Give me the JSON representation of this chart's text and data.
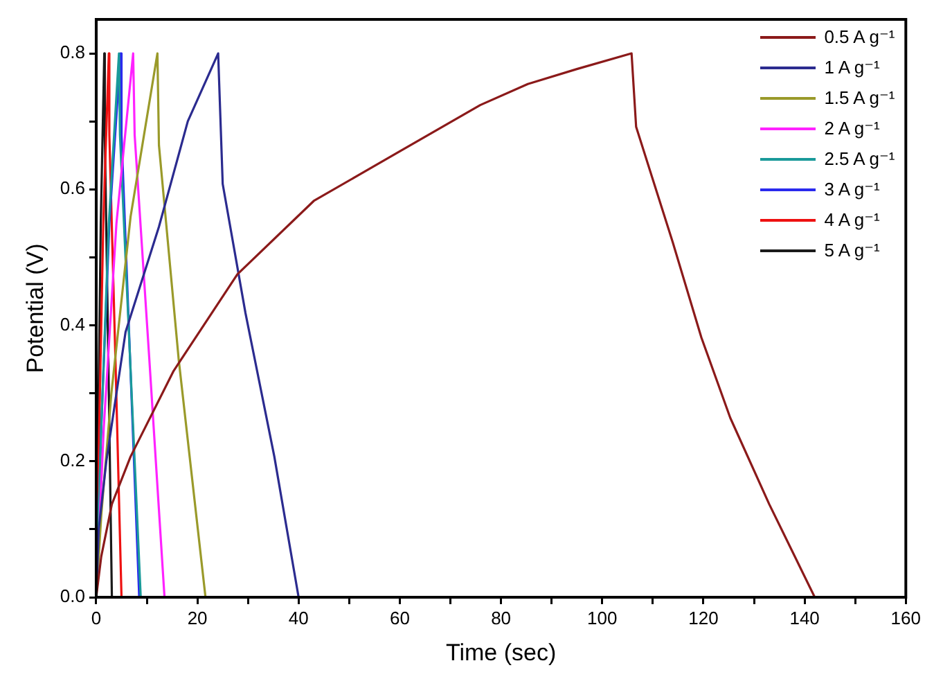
{
  "chart_data": {
    "type": "line",
    "xlabel": "Time (sec)",
    "ylabel": "Potential (V)",
    "xlim": [
      0,
      160
    ],
    "ylim": [
      0,
      0.85
    ],
    "xticks": [
      0,
      {
        "value": 10,
        "label": null
      },
      20,
      {
        "value": 30,
        "label": null
      },
      40,
      {
        "value": 50,
        "label": null
      },
      60,
      {
        "value": 70,
        "label": null
      },
      80,
      {
        "value": 90,
        "label": null
      },
      100,
      {
        "value": 110,
        "label": null
      },
      120,
      {
        "value": 130,
        "label": null
      },
      140,
      {
        "value": 150,
        "label": null
      },
      160
    ],
    "yticks": [
      {
        "value": 0,
        "label": "0.0"
      },
      {
        "value": 0.1,
        "label": null
      },
      0.2,
      {
        "value": 0.3,
        "label": null
      },
      0.4,
      {
        "value": 0.5,
        "label": null
      },
      0.6,
      {
        "value": 0.7,
        "label": null
      },
      0.8
    ],
    "legend": "top right",
    "marker": "none",
    "line_style": "solid",
    "series": [
      {
        "name": "0.5 A g⁻¹",
        "color": "#8b1a1a",
        "x": [
          0,
          1,
          3.1,
          6.8,
          15.3,
          27.9,
          43,
          60,
          75.9,
          85.3,
          95,
          105.8,
          106.7,
          113.9,
          119.6,
          125.3,
          133,
          142
        ],
        "values": [
          0,
          0.06,
          0.137,
          0.207,
          0.333,
          0.475,
          0.583,
          0.656,
          0.724,
          0.755,
          0.777,
          0.8,
          0.692,
          0.523,
          0.382,
          0.264,
          0.137,
          0
        ]
      },
      {
        "name": "1 A g⁻¹",
        "color": "#2b2b8f",
        "x": [
          0,
          0.5,
          2,
          5.8,
          12.4,
          18.1,
          24.1,
          25,
          29.5,
          35.2,
          40
        ],
        "values": [
          0,
          0.1,
          0.2,
          0.39,
          0.545,
          0.7,
          0.8,
          0.608,
          0.418,
          0.207,
          0
        ]
      },
      {
        "name": "1.5 A g⁻¹",
        "color": "#9a9a2a",
        "x": [
          0,
          1,
          3,
          6.8,
          12.1,
          12.4,
          16.3,
          21.6
        ],
        "values": [
          0,
          0.12,
          0.3,
          0.56,
          0.8,
          0.665,
          0.35,
          0
        ]
      },
      {
        "name": "2 A g⁻¹",
        "color": "#ff22ff",
        "x": [
          0,
          1.5,
          4,
          7.3,
          7.6,
          10.5,
          13.5
        ],
        "values": [
          0,
          0.25,
          0.55,
          0.8,
          0.68,
          0.35,
          0
        ]
      },
      {
        "name": "2.5 A g⁻¹",
        "color": "#1a9a9a",
        "x": [
          0,
          1,
          2.5,
          4.5,
          4.7,
          6.7,
          8.8
        ],
        "values": [
          0,
          0.25,
          0.55,
          0.8,
          0.68,
          0.35,
          0
        ]
      },
      {
        "name": "3 A g⁻¹",
        "color": "#2a2aee",
        "x": [
          0,
          1,
          2.6,
          4.8,
          5,
          6.7,
          8.5
        ],
        "values": [
          0,
          0.25,
          0.55,
          0.8,
          0.68,
          0.35,
          0
        ]
      },
      {
        "name": "4 A g⁻¹",
        "color": "#ee1111",
        "x": [
          0,
          0.6,
          1.4,
          2.5,
          2.6,
          3.8,
          5
        ],
        "values": [
          0,
          0.25,
          0.55,
          0.8,
          0.68,
          0.35,
          0
        ]
      },
      {
        "name": "5 A g⁻¹",
        "color": "#1a1a1a",
        "x": [
          0,
          0.4,
          0.9,
          1.6,
          1.7,
          2.4,
          3.1
        ],
        "values": [
          0,
          0.25,
          0.55,
          0.8,
          0.68,
          0.35,
          0
        ]
      }
    ]
  }
}
